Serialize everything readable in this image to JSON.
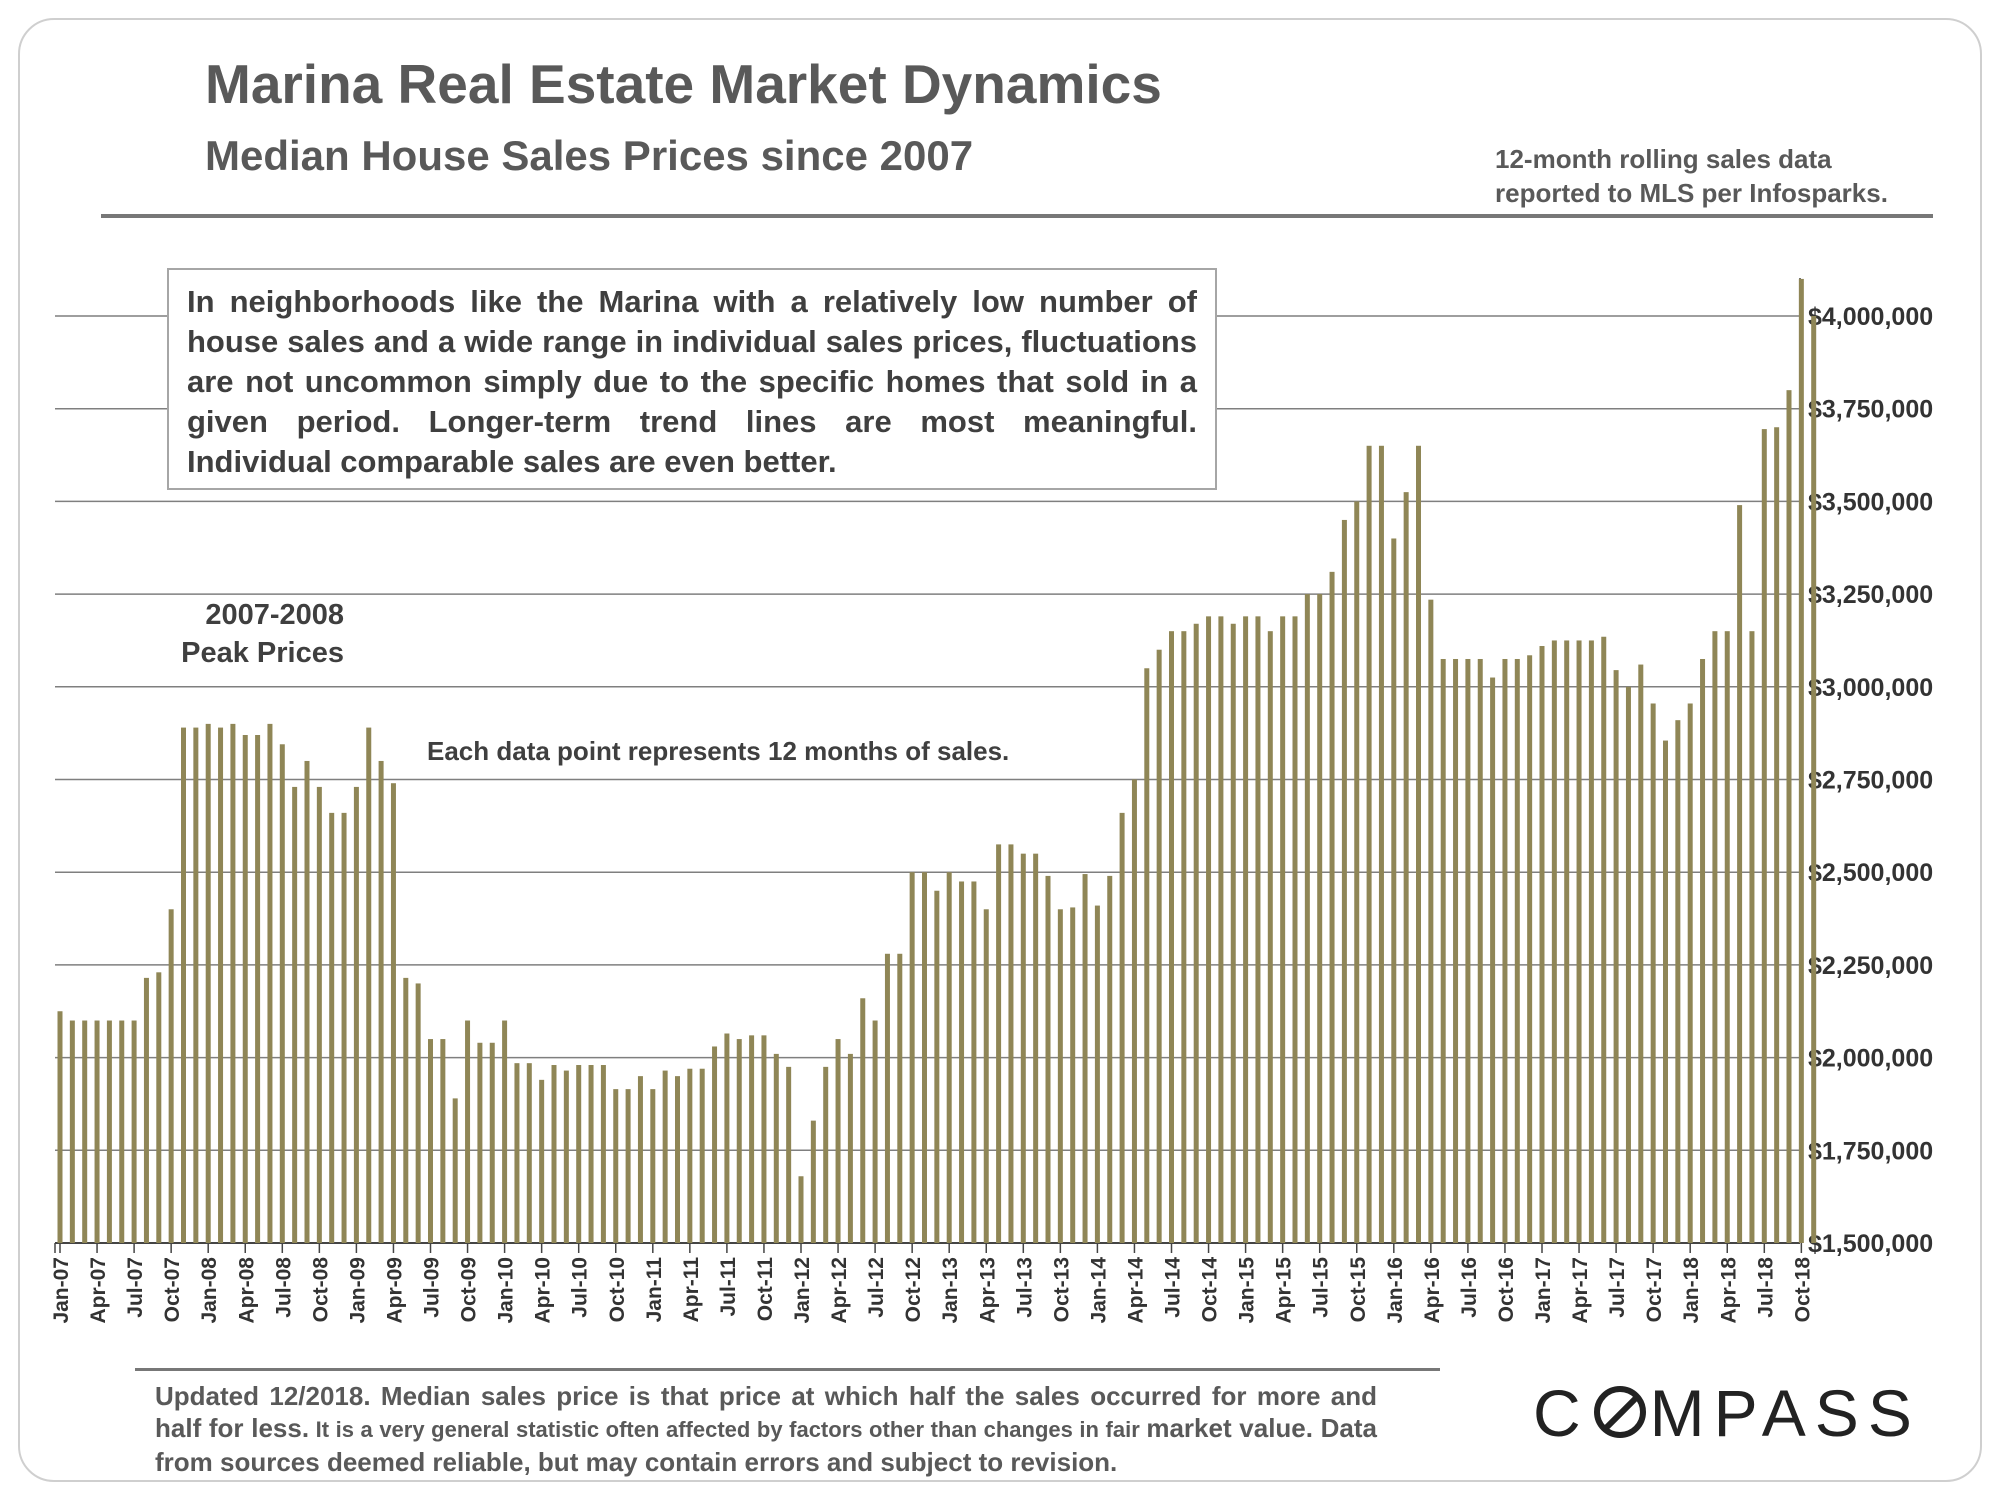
{
  "header": {
    "title": "Marina Real Estate Market Dynamics",
    "subtitle": "Median House Sales Prices since 2007",
    "source_line1": "12-month rolling sales data",
    "source_line2": "reported to MLS per Infosparks."
  },
  "annotations": {
    "note": "In neighborhoods like the Marina with a relatively low number of house sales and a wide range in individual sales prices, fluctuations are not uncommon simply due to the specific homes that sold in a given period. Longer-term trend lines are most meaningful. Individual comparable sales are even better.",
    "peak_line1": "2007-2008",
    "peak_line2": "Peak Prices",
    "each_point": "Each data point represents 12 months of sales."
  },
  "footer": {
    "text_bold": "Updated 12/2018. Median sales price is that price at which half the sales occurred for more and half for less.",
    "text_small": " It is a very general statistic often affected by factors other than changes in fair ",
    "text_end": "market value. Data from sources deemed reliable, but may contain errors and subject to revision."
  },
  "logo": {
    "left": "C",
    "right": "MPASS"
  },
  "colors": {
    "bar": "#8f8656",
    "grid": "#7f7f7f",
    "text": "#595959"
  },
  "chart_data": {
    "type": "bar",
    "title": "Median House Sales Prices since 2007",
    "xlabel": "",
    "ylabel": "",
    "ylim": [
      1500000,
      4000000
    ],
    "y_ticks": [
      1500000,
      1750000,
      2000000,
      2250000,
      2500000,
      2750000,
      3000000,
      3250000,
      3500000,
      3750000,
      4000000
    ],
    "y_tick_labels": [
      "$1,500,000",
      "$1,750,000",
      "$2,000,000",
      "$2,250,000",
      "$2,500,000",
      "$2,750,000",
      "$3,000,000",
      "$3,250,000",
      "$3,500,000",
      "$3,750,000",
      "$4,000,000"
    ],
    "x_tick_labels": [
      "Jan-07",
      "Apr-07",
      "Jul-07",
      "Oct-07",
      "Jan-08",
      "Apr-08",
      "Jul-08",
      "Oct-08",
      "Jan-09",
      "Apr-09",
      "Jul-09",
      "Oct-09",
      "Jan-10",
      "Apr-10",
      "Jul-10",
      "Oct-10",
      "Jan-11",
      "Apr-11",
      "Jul-11",
      "Oct-11",
      "Jan-12",
      "Apr-12",
      "Jul-12",
      "Oct-12",
      "Jan-13",
      "Apr-13",
      "Jul-13",
      "Oct-13",
      "Jan-14",
      "Apr-14",
      "Jul-14",
      "Oct-14",
      "Jan-15",
      "Apr-15",
      "Jul-15",
      "Oct-15",
      "Jan-16",
      "Apr-16",
      "Jul-16",
      "Oct-16",
      "Jan-17",
      "Apr-17",
      "Jul-17",
      "Oct-17",
      "Jan-18",
      "Apr-18",
      "Jul-18",
      "Oct-18"
    ],
    "series": [
      {
        "name": "Median House Sales Price",
        "start_month": "Jan-07",
        "values": [
          2125000,
          2100000,
          2100000,
          2100000,
          2100000,
          2100000,
          2100000,
          2215000,
          2230000,
          2400000,
          2890000,
          2890000,
          2900000,
          2890000,
          2900000,
          2870000,
          2870000,
          2900000,
          2845000,
          2730000,
          2800000,
          2730000,
          2660000,
          2660000,
          2730000,
          2890000,
          2800000,
          2740000,
          2215000,
          2200000,
          2050000,
          2050000,
          1890000,
          2100000,
          2040000,
          2040000,
          2100000,
          1985000,
          1985000,
          1940000,
          1980000,
          1965000,
          1980000,
          1980000,
          1980000,
          1915000,
          1915000,
          1950000,
          1915000,
          1965000,
          1950000,
          1970000,
          1970000,
          2030000,
          2065000,
          2050000,
          2060000,
          2060000,
          2010000,
          1975000,
          1680000,
          1830000,
          1975000,
          2050000,
          2010000,
          2160000,
          2100000,
          2280000,
          2280000,
          2500000,
          2500000,
          2450000,
          2500000,
          2475000,
          2475000,
          2400000,
          2575000,
          2575000,
          2550000,
          2550000,
          2490000,
          2400000,
          2405000,
          2495000,
          2410000,
          2490000,
          2660000,
          2750000,
          3050000,
          3100000,
          3150000,
          3150000,
          3170000,
          3190000,
          3190000,
          3170000,
          3190000,
          3190000,
          3150000,
          3190000,
          3190000,
          3250000,
          3250000,
          3310000,
          3450000,
          3500000,
          3650000,
          3650000,
          3400000,
          3525000,
          3650000,
          3235000,
          3075000,
          3075000,
          3075000,
          3075000,
          3025000,
          3075000,
          3075000,
          3085000,
          3110000,
          3125000,
          3125000,
          3125000,
          3125000,
          3135000,
          3045000,
          3000000,
          3060000,
          2955000,
          2855000,
          2910000,
          2955000,
          3075000,
          3150000,
          3150000,
          3490000,
          3150000,
          3695000,
          3700000,
          3800000,
          4100000,
          4000000
        ]
      }
    ]
  }
}
